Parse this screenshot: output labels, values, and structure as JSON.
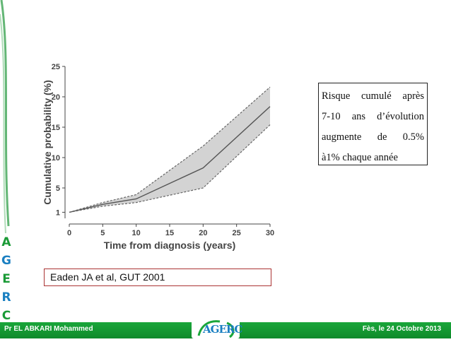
{
  "colors": {
    "accent_green": "#1aa63a",
    "band_fill": "#d3d3d3",
    "line": "#555555"
  },
  "side_letters": [
    "A",
    "G",
    "E",
    "R",
    "C"
  ],
  "chart_data": {
    "type": "line",
    "x": [
      0,
      5,
      10,
      20,
      30
    ],
    "series": [
      {
        "values": [
          1,
          2.3,
          3.2,
          8.3,
          18.4
        ]
      },
      {
        "values": [
          1,
          2.6,
          3.9,
          11.9,
          21.6
        ]
      },
      {
        "values": [
          1,
          2.0,
          2.6,
          5.0,
          15.4
        ]
      }
    ],
    "xlabel": "Time from diagnosis (years)",
    "ylabel": "Cumulative probability (%)",
    "xticks": [
      0,
      5,
      10,
      15,
      20,
      25,
      30
    ],
    "yticks": [
      1,
      5,
      10,
      15,
      20,
      25
    ],
    "xlim": [
      0,
      30
    ],
    "ylim": [
      0,
      25
    ],
    "grid": false
  },
  "note": {
    "lines": [
      [
        "Risque",
        "cumulé",
        "après"
      ],
      [
        "7-10",
        "ans",
        "d’évolution"
      ],
      [
        "augmente",
        "de",
        "0.5%"
      ],
      [
        "à1% chaque année"
      ]
    ]
  },
  "reference": "Eaden JA et al, GUT 2001",
  "footer": {
    "author": "Pr EL ABKARI Mohammed",
    "date": "Fès, le 24 Octobre 2013",
    "logo_text": "AGERC"
  }
}
